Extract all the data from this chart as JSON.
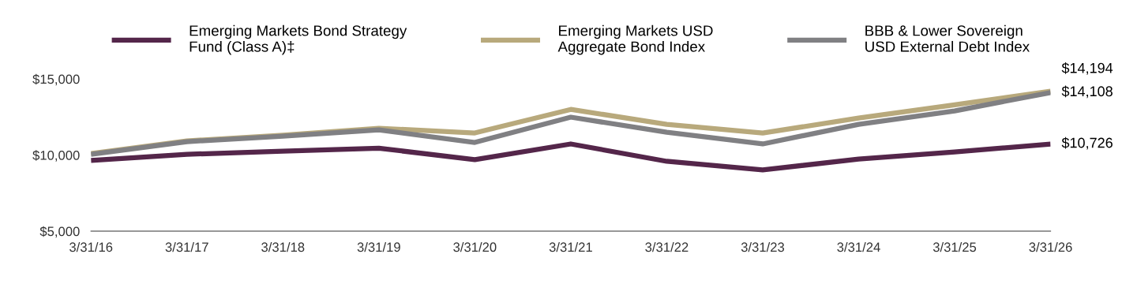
{
  "chart_data": {
    "type": "line",
    "categories": [
      "3/31/16",
      "3/31/17",
      "3/31/18",
      "3/31/19",
      "3/31/20",
      "3/31/21",
      "3/31/22",
      "3/31/23",
      "3/31/24",
      "3/31/25",
      "3/31/26"
    ],
    "series": [
      {
        "name": "Emerging Markets Bond Strategy\nFund (Class A)‡",
        "color": "#54264a",
        "values": [
          9650,
          10050,
          10250,
          10450,
          9700,
          10730,
          9590,
          9020,
          9740,
          10200,
          10726
        ],
        "value_labels": [
          null,
          null,
          null,
          null,
          null,
          null,
          null,
          null,
          null,
          null,
          "$10,726"
        ]
      },
      {
        "name": "Emerging Markets USD\nAggregate Bond Index",
        "color": "#b8a97c",
        "values": [
          10100,
          10930,
          11300,
          11760,
          11450,
          13000,
          12020,
          11450,
          12430,
          13300,
          14194
        ],
        "value_labels": [
          null,
          null,
          null,
          null,
          null,
          null,
          null,
          null,
          null,
          null,
          "$14,194"
        ]
      },
      {
        "name": "BBB & Lower Sovereign\nUSD External Debt Index",
        "color": "#808083",
        "values": [
          10050,
          10880,
          11240,
          11650,
          10830,
          12490,
          11500,
          10730,
          12020,
          12900,
          14108
        ],
        "value_labels": [
          null,
          null,
          null,
          null,
          null,
          null,
          null,
          null,
          null,
          null,
          "$14,108"
        ]
      }
    ],
    "ylim": [
      5000,
      15000
    ],
    "yticks": [
      {
        "value": 5000,
        "label": "$5,000"
      },
      {
        "value": 10000,
        "label": "$10,000"
      },
      {
        "value": 15000,
        "label": "$15,000"
      }
    ],
    "grid": false,
    "legend": "top",
    "marker": "none",
    "line_style": "solid"
  }
}
